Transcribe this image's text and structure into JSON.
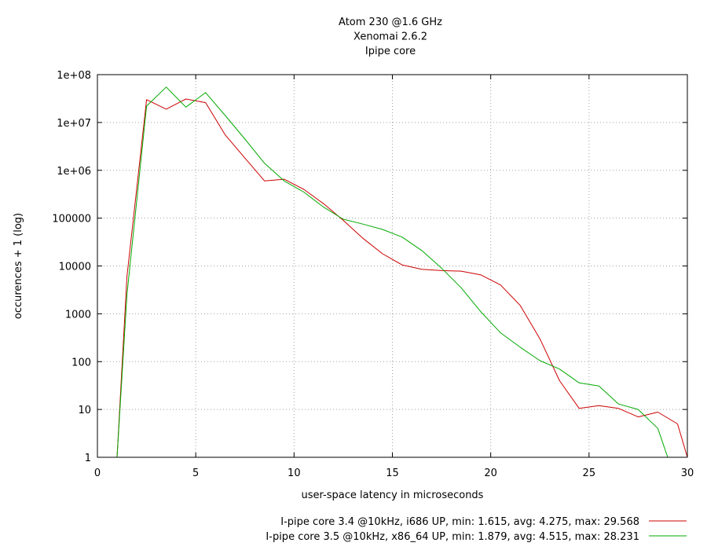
{
  "chart_data": {
    "type": "line",
    "title": [
      "Atom 230 @1.6 GHz",
      "Xenomai 2.6.2",
      "Ipipe core"
    ],
    "xlabel": "user-space latency in microseconds",
    "ylabel": "occurences + 1 (log)",
    "xlim": [
      0,
      30
    ],
    "ylim": [
      1,
      100000000
    ],
    "yscale": "log",
    "grid": true,
    "legend": "bottom-right",
    "x_ticks": [
      {
        "value": 0,
        "label": "0"
      },
      {
        "value": 5,
        "label": "5"
      },
      {
        "value": 10,
        "label": "10"
      },
      {
        "value": 15,
        "label": "15"
      },
      {
        "value": 20,
        "label": "20"
      },
      {
        "value": 25,
        "label": "25"
      },
      {
        "value": 30,
        "label": "30"
      }
    ],
    "y_ticks": [
      {
        "value": 1,
        "label": "1"
      },
      {
        "value": 10,
        "label": "10"
      },
      {
        "value": 100,
        "label": "100"
      },
      {
        "value": 1000,
        "label": "1000"
      },
      {
        "value": 10000,
        "label": "10000"
      },
      {
        "value": 100000,
        "label": "100000"
      },
      {
        "value": 1000000,
        "label": "1e+06"
      },
      {
        "value": 10000000,
        "label": "1e+07"
      },
      {
        "value": 100000000,
        "label": "1e+08"
      }
    ],
    "series": [
      {
        "name": "I-pipe core 3.4 @10kHz, i686 UP, min: 1.615, avg: 4.275, max: 29.568",
        "color": "#cc0000",
        "points": [
          [
            1.0,
            1
          ],
          [
            1.5,
            6000
          ],
          [
            2.5,
            30000000
          ],
          [
            3.5,
            19000000
          ],
          [
            4.5,
            31000000
          ],
          [
            5.5,
            26000000
          ],
          [
            6.5,
            5500000
          ],
          [
            7.5,
            1800000
          ],
          [
            8.5,
            600000
          ],
          [
            9.5,
            650000
          ],
          [
            10.5,
            400000
          ],
          [
            11.5,
            200000
          ],
          [
            12.5,
            90000
          ],
          [
            13.5,
            38000
          ],
          [
            14.5,
            18000
          ],
          [
            15.5,
            10500
          ],
          [
            16.5,
            8500
          ],
          [
            17.5,
            8000
          ],
          [
            18.5,
            7800
          ],
          [
            19.5,
            6500
          ],
          [
            20.5,
            4000
          ],
          [
            21.5,
            1500
          ],
          [
            22.5,
            300
          ],
          [
            23.5,
            40
          ],
          [
            24.5,
            10.5
          ],
          [
            25.5,
            12
          ],
          [
            26.5,
            10.5
          ],
          [
            27.5,
            7
          ],
          [
            28.5,
            8.8
          ],
          [
            29.5,
            5
          ],
          [
            30.0,
            1
          ]
        ]
      },
      {
        "name": "I-pipe core 3.5 @10kHz, x86_64 UP, min: 1.879, avg: 4.515, max: 28.231",
        "color": "#00aa00",
        "points": [
          [
            1.0,
            1
          ],
          [
            1.5,
            2500
          ],
          [
            2.5,
            22000000
          ],
          [
            3.5,
            55000000
          ],
          [
            4.5,
            21000000
          ],
          [
            5.5,
            42000000
          ],
          [
            6.5,
            14000000
          ],
          [
            7.5,
            4500000
          ],
          [
            8.5,
            1400000
          ],
          [
            9.5,
            600000
          ],
          [
            10.5,
            350000
          ],
          [
            11.5,
            170000
          ],
          [
            12.5,
            95000
          ],
          [
            13.5,
            75000
          ],
          [
            14.5,
            58000
          ],
          [
            15.5,
            40000
          ],
          [
            16.5,
            21000
          ],
          [
            17.5,
            9000
          ],
          [
            18.5,
            3500
          ],
          [
            19.5,
            1100
          ],
          [
            20.5,
            400
          ],
          [
            21.5,
            200
          ],
          [
            22.5,
            105
          ],
          [
            23.5,
            70
          ],
          [
            24.5,
            36
          ],
          [
            25.5,
            31
          ],
          [
            26.5,
            13
          ],
          [
            27.5,
            10
          ],
          [
            28.5,
            4
          ],
          [
            29.0,
            1
          ]
        ]
      }
    ]
  }
}
